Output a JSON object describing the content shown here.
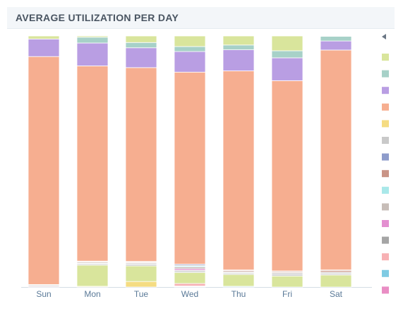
{
  "header": {
    "title": "AVERAGE UTILIZATION PER DAY"
  },
  "legend": {
    "arrow_icon": "caret-left-icon",
    "swatches": [
      {
        "color": "#d9e59c"
      },
      {
        "color": "#a7d1c8"
      },
      {
        "color": "#b99ee3"
      },
      {
        "color": "#f6ae90"
      },
      {
        "color": "#f5dc82"
      },
      {
        "color": "#c9c9c9"
      },
      {
        "color": "#8e9ccb"
      },
      {
        "color": "#c99486"
      },
      {
        "color": "#a9e8e9"
      },
      {
        "color": "#c7bdb8"
      },
      {
        "color": "#e38fd0"
      },
      {
        "color": "#a5a5a5"
      },
      {
        "color": "#f7b1b4"
      },
      {
        "color": "#7fcbe3"
      },
      {
        "color": "#e98dc4"
      }
    ]
  },
  "chart_data": {
    "type": "bar",
    "stacked": true,
    "normalized": true,
    "title": "AVERAGE UTILIZATION PER DAY",
    "xlabel": "",
    "ylabel": "",
    "ylim": [
      0,
      100
    ],
    "categories": [
      "Sun",
      "Mon",
      "Tue",
      "Wed",
      "Thu",
      "Fri",
      "Sat"
    ],
    "series": [
      {
        "color": "#e98dc4",
        "values": [
          0.0,
          0.0,
          0.0,
          0.2,
          0.0,
          0.0,
          0.0
        ]
      },
      {
        "color": "#7fcbe3",
        "values": [
          0.0,
          0.0,
          0.0,
          0.2,
          0.3,
          0.0,
          0.0
        ]
      },
      {
        "color": "#f7b1b4",
        "values": [
          0.3,
          0.0,
          0.0,
          1.0,
          0.0,
          0.0,
          0.0
        ]
      },
      {
        "color": "#f5dc82",
        "values": [
          0.0,
          0.3,
          2.2,
          0.0,
          0.0,
          0.0,
          0.0
        ]
      },
      {
        "color": "#d9e59c",
        "values": [
          0.0,
          8.4,
          6.2,
          4.4,
          4.7,
          4.4,
          4.8
        ]
      },
      {
        "color": "#c9c9c9",
        "values": [
          0.4,
          0.4,
          0.6,
          0.6,
          0.5,
          0.6,
          0.5
        ]
      },
      {
        "color": "#a5a5a5",
        "values": [
          0.0,
          0.3,
          0.3,
          0.3,
          0.3,
          0.4,
          0.3
        ]
      },
      {
        "color": "#e38fd0",
        "values": [
          0.0,
          0.0,
          0.0,
          0.6,
          0.0,
          0.0,
          0.0
        ]
      },
      {
        "color": "#c7bdb8",
        "values": [
          0.3,
          0.4,
          0.4,
          0.7,
          0.4,
          0.4,
          0.4
        ]
      },
      {
        "color": "#a9e8e9",
        "values": [
          0.0,
          0.0,
          0.0,
          0.4,
          0.0,
          0.0,
          0.0
        ]
      },
      {
        "color": "#c99486",
        "values": [
          0.0,
          0.3,
          0.3,
          0.3,
          0.4,
          0.4,
          0.6
        ]
      },
      {
        "color": "#8e9ccb",
        "values": [
          0.0,
          0.2,
          0.2,
          0.4,
          0.2,
          0.2,
          0.2
        ]
      },
      {
        "color": "#f6ae90",
        "values": [
          90.8,
          77.6,
          77.2,
          76.5,
          79.3,
          75.8,
          87.6
        ]
      },
      {
        "color": "#b99ee3",
        "values": [
          7.0,
          9.1,
          7.9,
          8.2,
          8.4,
          9.1,
          3.6
        ]
      },
      {
        "color": "#a7d1c8",
        "values": [
          0.0,
          2.3,
          2.1,
          2.0,
          1.9,
          2.8,
          1.9
        ]
      },
      {
        "color": "#d9e59c",
        "values": [
          1.2,
          0.5,
          2.6,
          4.2,
          3.6,
          5.9,
          0.1
        ]
      }
    ]
  }
}
